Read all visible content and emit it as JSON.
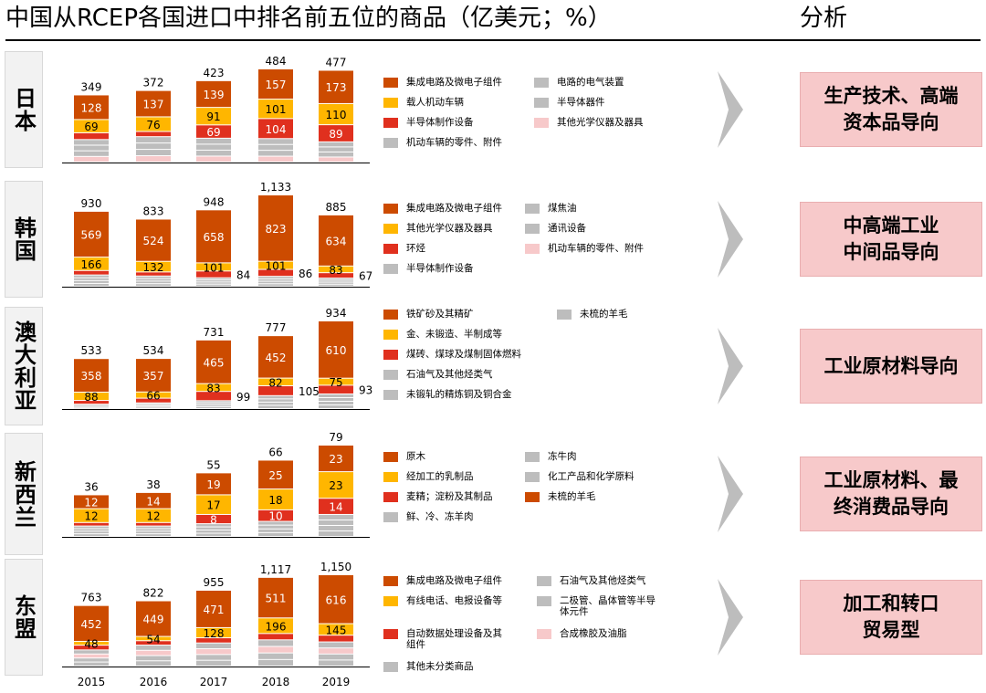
{
  "title": "中国从RCEP各国进口中排名前五位的商品（亿美元；%）",
  "analysis_header": "分析",
  "colors": {
    "dark_orange": "#cc4b00",
    "yellow": "#ffb600",
    "red": "#e0301e",
    "gray": "#bdbdbd",
    "pink": "#f7c9ca",
    "arrow_gray": "#bdbdbd"
  },
  "years": [
    "2015",
    "2016",
    "2017",
    "2018",
    "2019"
  ],
  "countries": [
    {
      "id": "japan",
      "name": "日本",
      "analysis": "生产技术、高端\n资本品导向",
      "legend": [
        {
          "label": "集成电路及微电子组件",
          "color": "#cc4b00"
        },
        {
          "label": "电路的电气装置",
          "color": "#bdbdbd"
        },
        {
          "label": "载人机动车辆",
          "color": "#ffb600"
        },
        {
          "label": "半导体器件",
          "color": "#bdbdbd"
        },
        {
          "label": "半导体制作设备",
          "color": "#e0301e"
        },
        {
          "label": "其他光学仪器及器具",
          "color": "#f7c9ca"
        },
        {
          "label": "机动车辆的零件、附件",
          "color": "#bdbdbd"
        }
      ]
    },
    {
      "id": "korea",
      "name": "韩国",
      "analysis": "中高端工业\n中间品导向",
      "legend": [
        {
          "label": "集成电路及微电子组件",
          "color": "#cc4b00"
        },
        {
          "label": "煤焦油",
          "color": "#bdbdbd"
        },
        {
          "label": "其他光学仪器及器具",
          "color": "#ffb600"
        },
        {
          "label": "通讯设备",
          "color": "#bdbdbd"
        },
        {
          "label": "环烃",
          "color": "#e0301e"
        },
        {
          "label": "机动车辆的零件、附件",
          "color": "#f7c9ca"
        },
        {
          "label": "半导体制作设备",
          "color": "#bdbdbd"
        }
      ]
    },
    {
      "id": "australia",
      "name": "澳大利亚",
      "analysis": "工业原材料导向",
      "legend": [
        {
          "label": "铁矿砂及其精矿",
          "color": "#cc4b00"
        },
        {
          "label": "未梳的羊毛",
          "color": "#bdbdbd"
        },
        {
          "label": "金、未锻造、半制成等",
          "color": "#ffb600"
        },
        {
          "label": "煤砖、煤球及煤制固体燃料",
          "color": "#e0301e"
        },
        {
          "label": "石油气及其他烃类气",
          "color": "#bdbdbd"
        },
        {
          "label": "未锻轧的精炼铜及铜合金",
          "color": "#bdbdbd"
        }
      ]
    },
    {
      "id": "newzealand",
      "name": "新西兰",
      "analysis": "工业原材料、最\n终消费品导向",
      "legend": [
        {
          "label": "原木",
          "color": "#cc4b00"
        },
        {
          "label": "冻牛肉",
          "color": "#bdbdbd"
        },
        {
          "label": "经加工的乳制品",
          "color": "#ffb600"
        },
        {
          "label": "化工产品和化学原料",
          "color": "#bdbdbd"
        },
        {
          "label": "麦精；淀粉及其制品",
          "color": "#e0301e"
        },
        {
          "label": "未梳的羊毛",
          "color": "#cc4b00"
        },
        {
          "label": "鲜、冷、冻羊肉",
          "color": "#bdbdbd"
        }
      ]
    },
    {
      "id": "asean",
      "name": "东盟",
      "analysis": "加工和转口\n贸易型",
      "legend": [
        {
          "label": "集成电路及微电子组件",
          "color": "#cc4b00"
        },
        {
          "label": "石油气及其他烃类气",
          "color": "#bdbdbd"
        },
        {
          "label": "有线电话、电报设备等",
          "color": "#ffb600"
        },
        {
          "label": "二极管、晶体管等半导\n体元件",
          "color": "#bdbdbd"
        },
        {
          "label": "自动数据处理设备及其\n组件",
          "color": "#e0301e"
        },
        {
          "label": "合成橡胶及油脂",
          "color": "#f7c9ca"
        },
        {
          "label": "其他未分类商品",
          "color": "#bdbdbd"
        }
      ]
    }
  ],
  "chart_data": [
    {
      "type": "bar",
      "country": "日本",
      "categories": [
        "2015",
        "2016",
        "2017",
        "2018",
        "2019"
      ],
      "totals": [
        349,
        372,
        423,
        484,
        477
      ],
      "series": [
        {
          "name": "集成电路及微电子组件",
          "values": [
            128,
            137,
            139,
            157,
            173
          ]
        },
        {
          "name": "载人机动车辆",
          "values": [
            69,
            76,
            91,
            101,
            110
          ]
        },
        {
          "name": "半导体制作设备",
          "values": [
            35,
            27,
            69,
            104,
            89
          ]
        },
        {
          "name": "其他",
          "values": [
            117,
            132,
            124,
            122,
            105
          ]
        }
      ],
      "shown_labels": {
        "集成电路及微电子组件": [
          "128",
          "137",
          "139",
          "157",
          "173"
        ],
        "载人机动车辆": [
          "69",
          "76",
          "91",
          "101",
          "110"
        ],
        "半导体制作设备": [
          "",
          "",
          "69",
          "104",
          "89"
        ]
      }
    },
    {
      "type": "bar",
      "country": "韩国",
      "categories": [
        "2015",
        "2016",
        "2017",
        "2018",
        "2019"
      ],
      "totals": [
        930,
        833,
        948,
        1133,
        885
      ],
      "series": [
        {
          "name": "集成电路及微电子组件",
          "values": [
            569,
            524,
            658,
            823,
            634
          ]
        },
        {
          "name": "其他光学仪器及器具",
          "values": [
            166,
            132,
            101,
            101,
            83
          ]
        },
        {
          "name": "环烃",
          "values": [
            55,
            50,
            84,
            86,
            67
          ]
        },
        {
          "name": "其他",
          "values": [
            140,
            127,
            105,
            123,
            101
          ]
        }
      ],
      "shown_labels": {
        "集成电路及微电子组件": [
          "569",
          "524",
          "658",
          "823",
          "634"
        ],
        "其他光学仪器及器具": [
          "166",
          "132",
          "101",
          "101",
          "83"
        ],
        "环烃": [
          "",
          "",
          "84",
          "86",
          "67"
        ]
      }
    },
    {
      "type": "bar",
      "country": "澳大利亚",
      "categories": [
        "2015",
        "2016",
        "2017",
        "2018",
        "2019"
      ],
      "totals": [
        533,
        534,
        731,
        777,
        934
      ],
      "series": [
        {
          "name": "铁矿砂及其精矿",
          "values": [
            358,
            357,
            465,
            452,
            610
          ]
        },
        {
          "name": "金、未锻造、半制成等",
          "values": [
            88,
            66,
            83,
            82,
            75
          ]
        },
        {
          "name": "煤砖、煤球及煤制固体燃料",
          "values": [
            40,
            50,
            99,
            105,
            93
          ]
        },
        {
          "name": "其他",
          "values": [
            47,
            61,
            84,
            138,
            156
          ]
        }
      ],
      "shown_labels": {
        "铁矿砂及其精矿": [
          "358",
          "357",
          "465",
          "452",
          "610"
        ],
        "金、未锻造、半制成等": [
          "88",
          "66",
          "83",
          "82",
          "75"
        ],
        "煤砖、煤球及煤制固体燃料": [
          "",
          "",
          "99",
          "105",
          "93"
        ]
      }
    },
    {
      "type": "bar",
      "country": "新西兰",
      "categories": [
        "2015",
        "2016",
        "2017",
        "2018",
        "2019"
      ],
      "totals": [
        36,
        38,
        55,
        66,
        79
      ],
      "series": [
        {
          "name": "原木",
          "values": [
            12,
            14,
            19,
            25,
            23
          ]
        },
        {
          "name": "经加工的乳制品",
          "values": [
            12,
            12,
            17,
            18,
            23
          ]
        },
        {
          "name": "麦精；淀粉及其制品",
          "values": [
            3,
            3,
            8,
            10,
            14
          ]
        },
        {
          "name": "其他",
          "values": [
            9,
            9,
            11,
            13,
            19
          ]
        }
      ],
      "shown_labels": {
        "原木": [
          "12",
          "14",
          "19",
          "25",
          "23"
        ],
        "经加工的乳制品": [
          "12",
          "12",
          "17",
          "18",
          "23"
        ],
        "麦精；淀粉及其制品": [
          "",
          "",
          "8",
          "10",
          "14"
        ]
      }
    },
    {
      "type": "bar",
      "country": "东盟",
      "categories": [
        "2015",
        "2016",
        "2017",
        "2018",
        "2019"
      ],
      "totals": [
        763,
        822,
        955,
        1117,
        1150
      ],
      "series": [
        {
          "name": "集成电路及微电子组件",
          "values": [
            452,
            449,
            471,
            511,
            616
          ]
        },
        {
          "name": "有线电话、电报设备等",
          "values": [
            48,
            54,
            128,
            196,
            145
          ]
        },
        {
          "name": "自动数据处理设备及其组件",
          "values": [
            60,
            55,
            65,
            80,
            85
          ]
        },
        {
          "name": "其他",
          "values": [
            203,
            264,
            291,
            330,
            304
          ]
        }
      ],
      "shown_labels": {
        "集成电路及微电子组件": [
          "452",
          "449",
          "471",
          "511",
          "616"
        ],
        "有线电话、电报设备等": [
          "48",
          "54",
          "128",
          "196",
          "145"
        ],
        "自动数据处理设备及其组件": [
          "",
          "",
          "",
          "",
          ""
        ]
      }
    }
  ]
}
